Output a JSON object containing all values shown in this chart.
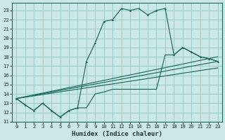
{
  "xlabel": "Humidex (Indice chaleur)",
  "bg_color": "#cce8e6",
  "grid_color": "#99ccca",
  "line_color": "#1a6b5e",
  "xlim": [
    -0.5,
    23.5
  ],
  "ylim": [
    11,
    23.8
  ],
  "yticks": [
    11,
    12,
    13,
    14,
    15,
    16,
    17,
    18,
    19,
    20,
    21,
    22,
    23
  ],
  "xticks": [
    0,
    1,
    2,
    3,
    4,
    5,
    6,
    7,
    8,
    9,
    10,
    11,
    12,
    13,
    14,
    15,
    16,
    17,
    18,
    19,
    20,
    21,
    22,
    23
  ],
  "main_line": [
    13.5,
    12.8,
    12.2,
    13.0,
    12.2,
    11.5,
    12.2,
    12.5,
    17.5,
    19.5,
    21.8,
    22.0,
    23.2,
    23.0,
    23.2,
    22.5,
    23.0,
    23.2,
    18.2,
    19.0,
    18.5,
    18.0,
    17.8,
    17.5
  ],
  "second_line": [
    13.5,
    12.8,
    12.2,
    13.0,
    12.2,
    11.5,
    12.2,
    12.5,
    12.5,
    14.0,
    14.2,
    14.5,
    14.5,
    14.5,
    14.5,
    14.5,
    14.5,
    18.2,
    18.2,
    19.0,
    18.5,
    18.0,
    17.8,
    17.5
  ],
  "linear1": [
    [
      0,
      23
    ],
    [
      13.5,
      18.0
    ]
  ],
  "linear2": [
    [
      0,
      23
    ],
    [
      13.5,
      17.5
    ]
  ],
  "linear3": [
    [
      0,
      23
    ],
    [
      13.5,
      16.8
    ]
  ]
}
